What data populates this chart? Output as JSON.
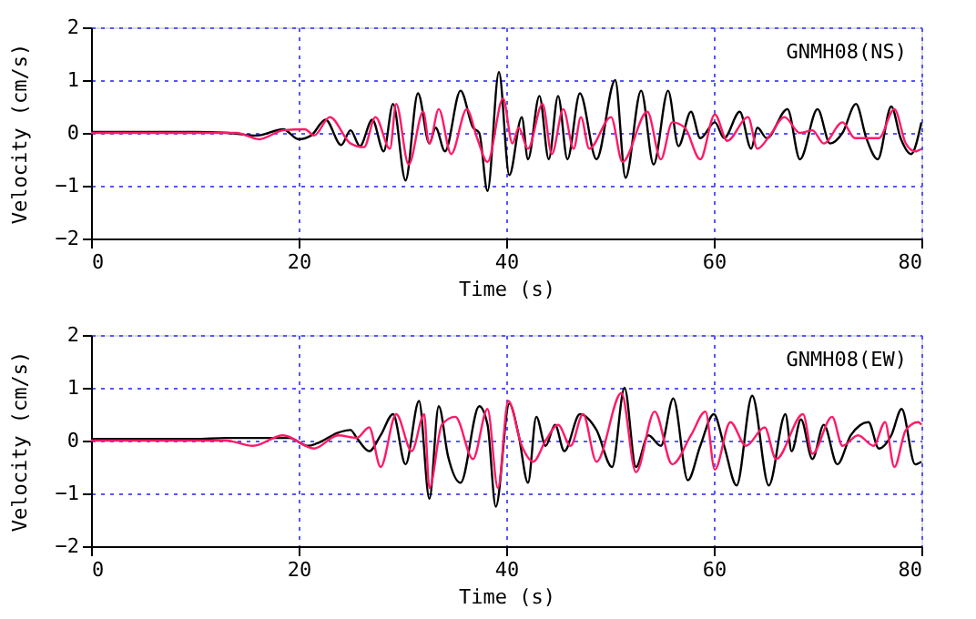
{
  "chart_data": [
    {
      "type": "line",
      "title": "GNMH08(NS)",
      "xlabel": "Time (s)",
      "ylabel": "Velocity (cm/s)",
      "xlim": [
        0,
        80
      ],
      "xticks": [
        0,
        20,
        40,
        60,
        80
      ],
      "ylim": [
        -2,
        2
      ],
      "yticks": [
        -2,
        -1,
        0,
        1,
        2
      ],
      "grid": true,
      "legend": false,
      "line_style": "solid",
      "marker": "none",
      "series": [
        {
          "color": "#000000",
          "x": [
            0,
            5,
            10,
            13.2,
            16,
            18.5,
            20,
            21.2,
            22.6,
            24.1,
            25,
            25.9,
            27.1,
            28.2,
            29.1,
            30.3,
            31.5,
            32.6,
            33.2,
            34.1,
            35.6,
            36.8,
            37.4,
            38.2,
            39.3,
            40.3,
            41.5,
            42.1,
            43.2,
            44.1,
            45.0,
            45.9,
            47.1,
            48.7,
            50.5,
            51.5,
            53,
            54.2,
            55.6,
            56.6,
            57.8,
            58.7,
            60.1,
            61,
            62.5,
            63.6,
            64.2,
            65.1,
            67.1,
            68.3,
            70,
            71.2,
            72.4,
            73.7,
            74.7,
            75.8,
            77.1,
            78,
            79,
            80
          ],
          "values": [
            0.02,
            0.02,
            0.02,
            0,
            -0.05,
            0.07,
            -0.12,
            -0.05,
            0.25,
            -0.23,
            0.05,
            -0.25,
            0.25,
            -0.35,
            0.55,
            -0.9,
            0.75,
            -0.2,
            0.1,
            -0.35,
            0.8,
            0.1,
            0,
            -1.1,
            1.15,
            -0.8,
            0.3,
            -0.5,
            0.7,
            -0.5,
            0.7,
            -0.5,
            0.75,
            -0.5,
            1.0,
            -0.85,
            0.8,
            -0.6,
            0.8,
            -0.25,
            0.4,
            -0.1,
            0.2,
            -0.1,
            0.4,
            -0.3,
            0.1,
            -0.1,
            0.45,
            -0.5,
            0.45,
            -0.2,
            0,
            0.55,
            -0.1,
            -0.5,
            0.5,
            -0.1,
            -0.4,
            0.2
          ]
        },
        {
          "color": "#ff1a66",
          "x": [
            0,
            10,
            14,
            16.2,
            18.5,
            20.6,
            21.5,
            23,
            25,
            26.3,
            27.4,
            28.8,
            29.4,
            30.6,
            32,
            32.6,
            33.5,
            34.7,
            36.2,
            37.2,
            38.2,
            39.7,
            40.6,
            41.2,
            42.1,
            43.5,
            44.4,
            45.5,
            46.5,
            47.2,
            48,
            50.1,
            51.2,
            53.6,
            54.9,
            56,
            57.2,
            58.7,
            60.1,
            61.3,
            63.3,
            64.2,
            65.4,
            66.8,
            68.3,
            69.5,
            70.6,
            72.4,
            73.6,
            75.9,
            77.4,
            78.5,
            79.4,
            80
          ],
          "values": [
            0,
            0,
            0,
            -0.12,
            0.05,
            0.07,
            -0.05,
            0.3,
            -0.2,
            -0.27,
            0.3,
            -0.3,
            0.55,
            -0.6,
            0.4,
            -0.2,
            0.45,
            -0.4,
            0.45,
            -0.1,
            -0.55,
            0.65,
            -0.2,
            0.1,
            -0.3,
            0.55,
            -0.4,
            0.45,
            -0.3,
            0.3,
            -0.3,
            0.3,
            -0.55,
            0.4,
            -0.5,
            0.2,
            0.1,
            -0.5,
            0.35,
            -0.15,
            0.3,
            -0.3,
            -0.05,
            0.3,
            0,
            0.05,
            -0.2,
            0.2,
            -0.1,
            -0.1,
            0.45,
            -0.2,
            -0.35,
            -0.3
          ]
        }
      ]
    },
    {
      "type": "line",
      "title": "GNMH08(EW)",
      "xlabel": "Time (s)",
      "ylabel": "Velocity (cm/s)",
      "xlim": [
        0,
        80
      ],
      "xticks": [
        0,
        20,
        40,
        60,
        80
      ],
      "ylim": [
        -2,
        2
      ],
      "yticks": [
        -2,
        -1,
        0,
        1,
        2
      ],
      "grid": true,
      "legend": false,
      "line_style": "solid",
      "marker": "none",
      "series": [
        {
          "color": "#000000",
          "x": [
            0,
            10,
            13,
            19.1,
            20.9,
            21.8,
            23.8,
            25,
            25.6,
            26.8,
            27.9,
            29.1,
            30.3,
            31.6,
            32.6,
            33.5,
            34.4,
            35.6,
            37.4,
            38.2,
            39,
            40.3,
            41.2,
            42.1,
            42.9,
            43.8,
            44.7,
            45.6,
            47.1,
            48.7,
            50.2,
            51.4,
            52.5,
            53.7,
            54.9,
            56.1,
            57.5,
            58.7,
            60,
            61,
            62.2,
            63.7,
            65.3,
            66.9,
            67.5,
            68.4,
            69.5,
            70.6,
            71.9,
            73.2,
            74.9,
            75.9,
            77.1,
            78.1,
            79.4,
            80
          ],
          "values": [
            0.03,
            0.03,
            0.05,
            0.05,
            -0.1,
            -0.05,
            0.15,
            0.2,
            0.05,
            -0.2,
            0.1,
            0.5,
            -0.45,
            0.75,
            -1.1,
            0.65,
            -0.3,
            -0.8,
            0.65,
            0.3,
            -1.25,
            0.7,
            0.1,
            -0.8,
            0.45,
            -0.1,
            0.3,
            -0.2,
            0.5,
            0.2,
            -0.5,
            1.0,
            -0.5,
            0.1,
            -0.1,
            0.8,
            -0.75,
            -0.1,
            0.5,
            -0.1,
            -0.85,
            0.85,
            -0.85,
            0.5,
            -0.2,
            0.4,
            -0.35,
            0.3,
            -0.45,
            0.1,
            0.35,
            -0.15,
            0.1,
            0.6,
            -0.45,
            -0.4
          ]
        },
        {
          "color": "#ff1a66",
          "x": [
            0,
            10,
            13,
            15.6,
            18.5,
            21.5,
            23.8,
            25.6,
            26.8,
            27.9,
            29.4,
            30.9,
            32.1,
            32.6,
            33.8,
            35.1,
            36.8,
            38.2,
            39.2,
            40.2,
            41.5,
            42.6,
            43.8,
            45,
            46.2,
            47.4,
            48.7,
            51.1,
            52.5,
            54.3,
            56,
            57.8,
            59.2,
            60.1,
            61.6,
            63.1,
            64.9,
            66,
            68.6,
            69.5,
            71.4,
            72.4,
            73.9,
            75.4,
            76.5,
            77.4,
            78.5,
            79.7,
            80
          ],
          "values": [
            0,
            0,
            0,
            -0.1,
            0.1,
            -0.15,
            0.1,
            0.05,
            0.25,
            -0.5,
            0.5,
            -0.2,
            0.5,
            -0.9,
            0.3,
            0.45,
            -0.35,
            0.6,
            -0.9,
            0.75,
            -0.1,
            -0.4,
            0,
            0.3,
            -0.1,
            0.5,
            -0.4,
            0.9,
            -0.6,
            0.55,
            -0.45,
            0.1,
            0.55,
            -0.55,
            0.35,
            -0.1,
            0.25,
            -0.35,
            0.5,
            -0.25,
            0.45,
            -0.1,
            0.1,
            -0.1,
            0.35,
            -0.5,
            0.2,
            0.35,
            0.3
          ]
        }
      ]
    }
  ]
}
